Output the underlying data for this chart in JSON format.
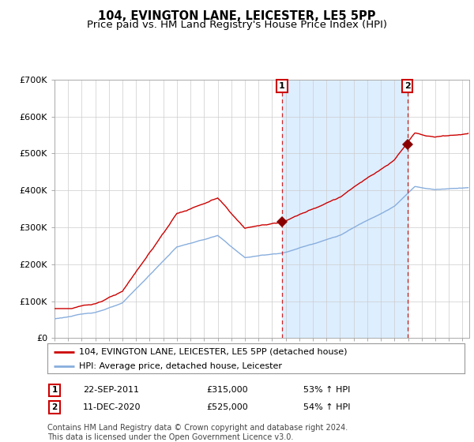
{
  "title": "104, EVINGTON LANE, LEICESTER, LE5 5PP",
  "subtitle": "Price paid vs. HM Land Registry's House Price Index (HPI)",
  "ylim": [
    0,
    700000
  ],
  "yticks": [
    0,
    100000,
    200000,
    300000,
    400000,
    500000,
    600000,
    700000
  ],
  "ytick_labels": [
    "£0",
    "£100K",
    "£200K",
    "£300K",
    "£400K",
    "£500K",
    "£600K",
    "£700K"
  ],
  "sale1": {
    "date_str": "22-SEP-2011",
    "price": 315000,
    "year": 2011.72,
    "label": "1",
    "pct": "53% ↑ HPI"
  },
  "sale2": {
    "date_str": "11-DEC-2020",
    "price": 525000,
    "year": 2020.94,
    "label": "2",
    "pct": "54% ↑ HPI"
  },
  "legend_property": "104, EVINGTON LANE, LEICESTER, LE5 5PP (detached house)",
  "legend_hpi": "HPI: Average price, detached house, Leicester",
  "footnote": "Contains HM Land Registry data © Crown copyright and database right 2024.\nThis data is licensed under the Open Government Licence v3.0.",
  "property_line_color": "#cc0000",
  "hpi_line_color": "#88aedd",
  "background_color": "#ffffff",
  "plot_bg_color": "#ffffff",
  "shade_color": "#ddeeff",
  "grid_color": "#cccccc",
  "sale_marker_color": "#880000",
  "sale_vline_color": "#cc0000",
  "title_fontsize": 10.5,
  "subtitle_fontsize": 9.5,
  "tick_fontsize": 8,
  "legend_fontsize": 8,
  "footnote_fontsize": 7
}
